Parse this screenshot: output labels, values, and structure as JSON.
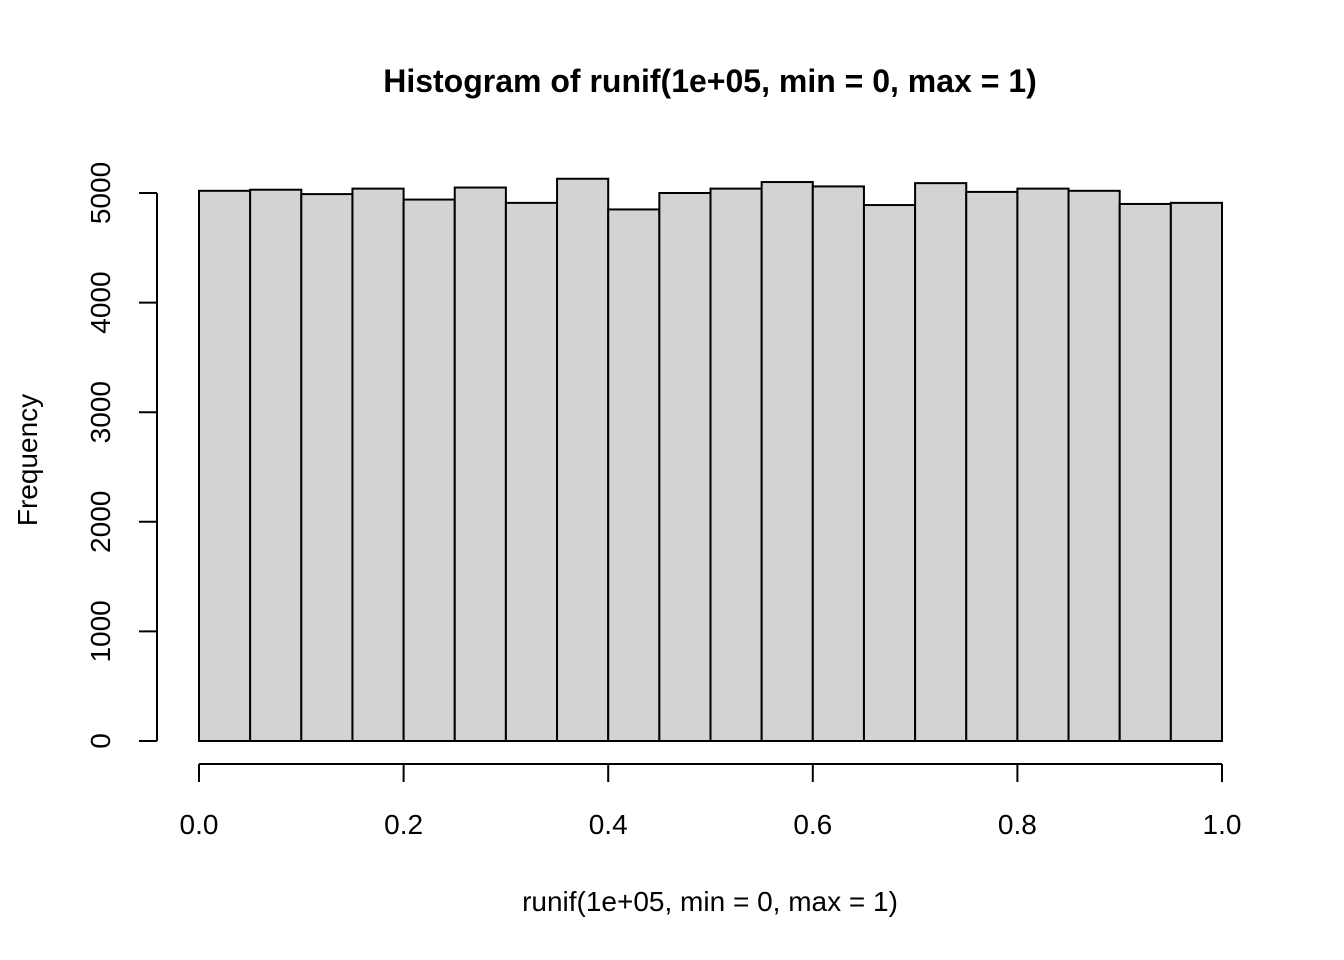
{
  "chart_data": {
    "type": "bar",
    "title": "Histogram of runif(1e+05, min = 0, max = 1)",
    "xlabel": "runif(1e+05, min = 0, max = 1)",
    "ylabel": "Frequency",
    "bin_edges": [
      0.0,
      0.05,
      0.1,
      0.15,
      0.2,
      0.25,
      0.3,
      0.35,
      0.4,
      0.45,
      0.5,
      0.55,
      0.6,
      0.65,
      0.7,
      0.75,
      0.8,
      0.85,
      0.9,
      0.95,
      1.0
    ],
    "values": [
      5020,
      5030,
      4990,
      5040,
      4940,
      5050,
      4910,
      5130,
      4850,
      5000,
      5040,
      5100,
      5060,
      4890,
      5090,
      5010,
      5040,
      5020,
      4900,
      4910
    ],
    "xlim": [
      0,
      1
    ],
    "ylim": [
      0,
      5130
    ],
    "x_ticks": [
      0.0,
      0.2,
      0.4,
      0.6,
      0.8,
      1.0
    ],
    "x_tick_labels": [
      "0.0",
      "0.2",
      "0.4",
      "0.6",
      "0.8",
      "1.0"
    ],
    "y_ticks": [
      0,
      1000,
      2000,
      3000,
      4000,
      5000
    ],
    "y_tick_labels": [
      "0",
      "1000",
      "2000",
      "3000",
      "4000",
      "5000"
    ],
    "bar_color": "#d3d3d3",
    "grid": false
  }
}
